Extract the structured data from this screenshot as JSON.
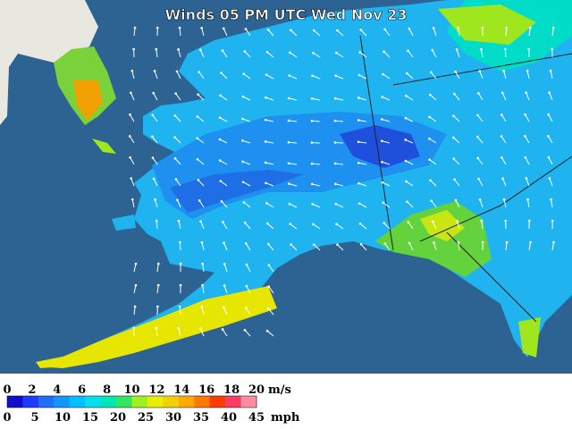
{
  "header": {
    "title": "Winds 05 PM UTC Wed Nov 23"
  },
  "legend": {
    "ms_labels": [
      0,
      2,
      4,
      6,
      8,
      10,
      12,
      14,
      16,
      18,
      20
    ],
    "ms_unit": "m/s",
    "mph_labels": [
      0,
      5,
      10,
      15,
      20,
      25,
      30,
      35,
      40,
      45
    ],
    "mph_unit": "mph",
    "colors": [
      "#1010c8",
      "#1e3cff",
      "#1e6eff",
      "#1496ff",
      "#00c0ff",
      "#00e0f0",
      "#00e6b4",
      "#32e664",
      "#a0f01e",
      "#e6f000",
      "#f0d200",
      "#ffaa00",
      "#ff7800",
      "#ff3c00",
      "#ff3c64",
      "#ff8ca0"
    ]
  }
}
